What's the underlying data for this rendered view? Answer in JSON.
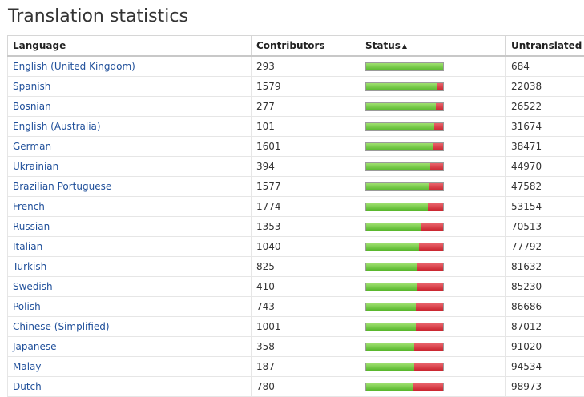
{
  "page": {
    "title": "Translation statistics"
  },
  "table": {
    "headers": {
      "language": "Language",
      "contributors": "Contributors",
      "status": "Status",
      "untranslated": "Untranslated"
    },
    "status_sort_indicator": "▲",
    "colors": {
      "translated": "#5cb82e",
      "untranslated": "#cc2f3a",
      "link": "#1f4f9a"
    },
    "rows": [
      {
        "language": "English (United Kingdom)",
        "contributors": "293",
        "status_fraction": 1.0,
        "untranslated": "684"
      },
      {
        "language": "Spanish",
        "contributors": "1579",
        "status_fraction": 0.92,
        "untranslated": "22038"
      },
      {
        "language": "Bosnian",
        "contributors": "277",
        "status_fraction": 0.91,
        "untranslated": "26522"
      },
      {
        "language": "English (Australia)",
        "contributors": "101",
        "status_fraction": 0.89,
        "untranslated": "31674"
      },
      {
        "language": "German",
        "contributors": "1601",
        "status_fraction": 0.86,
        "untranslated": "38471"
      },
      {
        "language": "Ukrainian",
        "contributors": "394",
        "status_fraction": 0.83,
        "untranslated": "44970"
      },
      {
        "language": "Brazilian Portuguese",
        "contributors": "1577",
        "status_fraction": 0.82,
        "untranslated": "47582"
      },
      {
        "language": "French",
        "contributors": "1774",
        "status_fraction": 0.8,
        "untranslated": "53154"
      },
      {
        "language": "Russian",
        "contributors": "1353",
        "status_fraction": 0.72,
        "untranslated": "70513"
      },
      {
        "language": "Italian",
        "contributors": "1040",
        "status_fraction": 0.69,
        "untranslated": "77792"
      },
      {
        "language": "Turkish",
        "contributors": "825",
        "status_fraction": 0.67,
        "untranslated": "81632"
      },
      {
        "language": "Swedish",
        "contributors": "410",
        "status_fraction": 0.66,
        "untranslated": "85230"
      },
      {
        "language": "Polish",
        "contributors": "743",
        "status_fraction": 0.65,
        "untranslated": "86686"
      },
      {
        "language": "Chinese (Simplified)",
        "contributors": "1001",
        "status_fraction": 0.65,
        "untranslated": "87012"
      },
      {
        "language": "Japanese",
        "contributors": "358",
        "status_fraction": 0.63,
        "untranslated": "91020"
      },
      {
        "language": "Malay",
        "contributors": "187",
        "status_fraction": 0.62,
        "untranslated": "94534"
      },
      {
        "language": "Dutch",
        "contributors": "780",
        "status_fraction": 0.6,
        "untranslated": "98973"
      }
    ]
  }
}
